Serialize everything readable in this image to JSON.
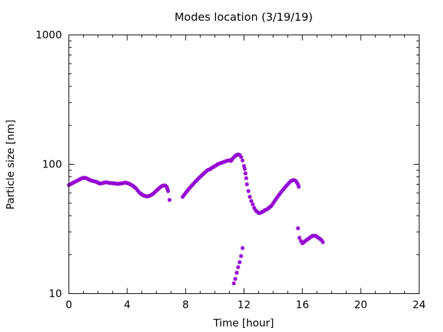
{
  "chart_data": {
    "type": "scatter",
    "title": "Modes location (3/19/19)",
    "xlabel": "Time [hour]",
    "ylabel": "Particle size [nm]",
    "xlim": [
      0,
      24
    ],
    "ylim": [
      10,
      1000
    ],
    "yscale": "log",
    "grid": false,
    "legend": "none",
    "marker_color": "#9400d3",
    "marker_shape": "asterisk",
    "x_ticks": [
      0,
      4,
      8,
      12,
      16,
      20,
      24
    ],
    "x_tick_labels": [
      "0",
      "4",
      "8",
      "12",
      "16",
      "20",
      "24"
    ],
    "y_ticks": [
      10,
      100,
      1000
    ],
    "y_tick_labels": [
      "10",
      "100",
      "1000"
    ],
    "series": [
      {
        "points": [
          [
            0.0,
            69
          ],
          [
            0.1,
            70
          ],
          [
            0.2,
            71
          ],
          [
            0.3,
            72
          ],
          [
            0.4,
            73
          ],
          [
            0.5,
            74
          ],
          [
            0.6,
            75
          ],
          [
            0.7,
            76
          ],
          [
            0.8,
            77
          ],
          [
            0.9,
            78
          ],
          [
            1.0,
            78.5
          ],
          [
            1.1,
            78.5
          ],
          [
            1.2,
            78
          ],
          [
            1.3,
            77
          ],
          [
            1.4,
            76
          ],
          [
            1.5,
            75
          ],
          [
            1.6,
            74.5
          ],
          [
            1.7,
            74
          ],
          [
            1.8,
            73.5
          ],
          [
            1.9,
            73
          ],
          [
            2.0,
            72
          ],
          [
            2.1,
            71
          ],
          [
            2.2,
            71
          ],
          [
            2.3,
            71.5
          ],
          [
            2.4,
            72
          ],
          [
            2.5,
            72.5
          ],
          [
            2.6,
            72.5
          ],
          [
            2.7,
            72
          ],
          [
            2.8,
            71.5
          ],
          [
            2.9,
            71.5
          ],
          [
            3.0,
            71.5
          ],
          [
            3.1,
            71
          ],
          [
            3.2,
            71
          ],
          [
            3.3,
            70.5
          ],
          [
            3.4,
            70.5
          ],
          [
            3.5,
            71
          ],
          [
            3.6,
            71
          ],
          [
            3.7,
            71.5
          ],
          [
            3.8,
            72
          ],
          [
            3.9,
            72
          ],
          [
            4.0,
            71.5
          ],
          [
            4.1,
            71
          ],
          [
            4.2,
            70
          ],
          [
            4.3,
            69
          ],
          [
            4.4,
            68
          ],
          [
            4.5,
            66.5
          ],
          [
            4.6,
            65
          ],
          [
            4.7,
            63
          ],
          [
            4.8,
            61
          ],
          [
            4.9,
            59.5
          ],
          [
            5.0,
            58.5
          ],
          [
            5.1,
            57.5
          ],
          [
            5.2,
            57
          ],
          [
            5.3,
            56.5
          ],
          [
            5.4,
            56.5
          ],
          [
            5.5,
            57
          ],
          [
            5.6,
            57.5
          ],
          [
            5.7,
            58.5
          ],
          [
            5.8,
            59.5
          ],
          [
            5.9,
            61
          ],
          [
            6.0,
            62.5
          ],
          [
            6.1,
            64
          ],
          [
            6.2,
            65.5
          ],
          [
            6.3,
            67
          ],
          [
            6.4,
            68
          ],
          [
            6.5,
            68.5
          ],
          [
            6.6,
            68.5
          ],
          [
            6.7,
            67
          ],
          [
            6.75,
            64.5
          ],
          [
            6.8,
            62
          ],
          [
            6.9,
            53
          ]
        ]
      },
      {
        "points": [
          [
            7.8,
            56
          ],
          [
            7.9,
            58
          ],
          [
            8.0,
            60
          ],
          [
            8.1,
            62
          ],
          [
            8.2,
            64
          ],
          [
            8.3,
            66
          ],
          [
            8.4,
            68
          ],
          [
            8.5,
            70
          ],
          [
            8.6,
            72
          ],
          [
            8.7,
            74
          ],
          [
            8.8,
            76
          ],
          [
            8.9,
            78
          ],
          [
            9.0,
            80
          ],
          [
            9.1,
            82
          ],
          [
            9.2,
            84
          ],
          [
            9.3,
            86
          ],
          [
            9.4,
            88
          ],
          [
            9.5,
            90
          ],
          [
            9.6,
            91
          ],
          [
            9.7,
            92
          ],
          [
            9.8,
            94
          ],
          [
            9.9,
            95
          ],
          [
            10.0,
            97
          ],
          [
            10.1,
            98
          ],
          [
            10.2,
            100
          ],
          [
            10.3,
            101
          ],
          [
            10.4,
            102
          ],
          [
            10.5,
            103
          ],
          [
            10.6,
            104
          ],
          [
            10.7,
            105
          ],
          [
            10.8,
            106
          ],
          [
            10.9,
            107
          ],
          [
            11.0,
            107
          ],
          [
            11.1,
            106
          ],
          [
            11.15,
            108
          ],
          [
            11.2,
            110
          ],
          [
            11.3,
            113
          ],
          [
            11.4,
            116
          ],
          [
            11.5,
            118
          ],
          [
            11.6,
            119
          ],
          [
            11.7,
            118
          ],
          [
            11.8,
            114
          ],
          [
            11.9,
            107
          ],
          [
            12.0,
            97
          ],
          [
            12.05,
            92
          ],
          [
            12.1,
            85
          ],
          [
            12.15,
            78
          ],
          [
            12.2,
            70
          ],
          [
            12.3,
            62
          ],
          [
            12.4,
            56
          ],
          [
            12.5,
            52
          ],
          [
            12.6,
            49
          ],
          [
            12.7,
            46
          ],
          [
            12.8,
            44
          ],
          [
            12.9,
            43
          ],
          [
            13.0,
            42
          ],
          [
            13.1,
            42
          ],
          [
            13.2,
            42.5
          ],
          [
            13.3,
            43
          ],
          [
            13.4,
            44
          ],
          [
            13.5,
            44.5
          ],
          [
            13.6,
            45
          ],
          [
            13.7,
            46
          ],
          [
            13.8,
            47
          ],
          [
            13.9,
            48
          ],
          [
            14.0,
            50
          ],
          [
            14.1,
            52
          ],
          [
            14.2,
            54
          ],
          [
            14.3,
            56
          ],
          [
            14.4,
            58
          ],
          [
            14.5,
            60
          ],
          [
            14.6,
            62
          ],
          [
            14.7,
            64
          ],
          [
            14.8,
            66
          ],
          [
            14.9,
            68
          ],
          [
            15.0,
            70
          ],
          [
            15.1,
            72
          ],
          [
            15.2,
            74
          ],
          [
            15.3,
            75
          ],
          [
            15.4,
            75.5
          ],
          [
            15.5,
            75
          ],
          [
            15.6,
            73
          ],
          [
            15.7,
            70
          ],
          [
            15.75,
            67
          ]
        ]
      },
      {
        "points": [
          [
            11.3,
            12
          ],
          [
            11.4,
            13
          ],
          [
            11.5,
            14.5
          ],
          [
            11.6,
            16
          ],
          [
            11.7,
            17.5
          ],
          [
            11.8,
            19.5
          ],
          [
            11.9,
            22.5
          ]
        ]
      },
      {
        "points": [
          [
            15.7,
            32
          ],
          [
            15.8,
            27
          ],
          [
            15.9,
            25.5
          ],
          [
            16.0,
            24.5
          ],
          [
            16.1,
            25
          ],
          [
            16.2,
            25.5
          ],
          [
            16.3,
            26
          ],
          [
            16.4,
            26.5
          ],
          [
            16.5,
            27
          ],
          [
            16.6,
            27.5
          ],
          [
            16.7,
            28
          ],
          [
            16.8,
            28
          ],
          [
            16.9,
            28
          ],
          [
            17.0,
            27.5
          ],
          [
            17.1,
            27
          ],
          [
            17.2,
            26.5
          ],
          [
            17.3,
            26
          ],
          [
            17.4,
            25
          ]
        ]
      }
    ]
  }
}
